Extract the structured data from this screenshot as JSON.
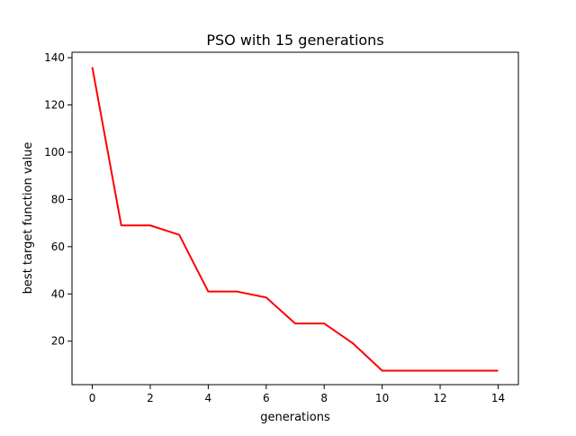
{
  "chart_data": {
    "type": "line",
    "title": "PSO with 15 generations",
    "xlabel": "generations",
    "ylabel": "best target function value",
    "xlim": [
      -0.7,
      14.7
    ],
    "ylim": [
      1.6,
      142.3
    ],
    "xticks": [
      0,
      2,
      4,
      6,
      8,
      10,
      12,
      14
    ],
    "yticks": [
      20,
      40,
      60,
      80,
      100,
      120,
      140
    ],
    "grid": false,
    "series": [
      {
        "color": "#ff0000",
        "x": [
          0,
          1,
          2,
          3,
          4,
          5,
          6,
          7,
          8,
          9,
          10,
          11,
          12,
          13,
          14
        ],
        "y": [
          136.0,
          69.0,
          69.0,
          65.0,
          41.0,
          41.0,
          38.5,
          27.5,
          27.5,
          19.0,
          7.5,
          7.5,
          7.5,
          7.5,
          7.5
        ]
      }
    ]
  }
}
